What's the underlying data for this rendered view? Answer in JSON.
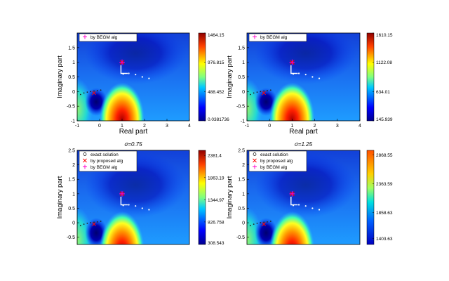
{
  "chart_data": [
    {
      "type": "heatmap",
      "title": "",
      "xlabel": "Real part",
      "ylabel": "Imaginary part",
      "xlim": [
        -1,
        4
      ],
      "ylim": [
        -1,
        2
      ],
      "xticks": [
        "-1",
        "0",
        "1",
        "2",
        "3",
        "4"
      ],
      "yticks": [
        "-1",
        "-0.5",
        "0",
        "0.5",
        "1",
        "1.5"
      ],
      "legend": [
        "by BEGM alg"
      ],
      "colorbar_ticks": [
        "1464.15",
        "976.815",
        "488.452",
        "0.0381736"
      ],
      "colorbar_range": [
        0,
        1464.15
      ],
      "grid": false
    },
    {
      "type": "heatmap",
      "title": "",
      "xlabel": "Real part",
      "ylabel": "Imaginary part",
      "xlim": [
        -1,
        4
      ],
      "ylim": [
        -1,
        2
      ],
      "xticks": [
        "-1",
        "0",
        "1",
        "2",
        "3",
        "4"
      ],
      "yticks": [
        "-1",
        "-0.5",
        "0",
        "0.5",
        "1",
        "1.5"
      ],
      "legend": [
        "by BEGM alg"
      ],
      "colorbar_ticks": [
        "1610.15",
        "1122.08",
        "634.01",
        "145.939"
      ],
      "colorbar_range": [
        145.939,
        1610.15
      ],
      "grid": false
    },
    {
      "type": "heatmap",
      "title": "σ=0.75",
      "xlabel": "",
      "ylabel": "Imaginary part",
      "xlim": [
        -1,
        4
      ],
      "ylim": [
        -0.75,
        2.5
      ],
      "yticks": [
        "-0.5",
        "0",
        "0.5",
        "1",
        "1.5",
        "2",
        "2.5"
      ],
      "legend": [
        "exact solution",
        "by proposed alg",
        "by BEGM alg"
      ],
      "colorbar_ticks": [
        "2381.4",
        "1863.19",
        "1344.97",
        "826.758",
        "308.543"
      ],
      "colorbar_range": [
        300,
        2500
      ],
      "grid": false
    },
    {
      "type": "heatmap",
      "title": "σ=1.25",
      "xlabel": "",
      "ylabel": "Imaginary part",
      "xlim": [
        -1,
        4
      ],
      "ylim": [
        -0.75,
        2.5
      ],
      "yticks": [
        "-0.5",
        "0",
        "0.5",
        "1",
        "1.5",
        "2",
        "2.5"
      ],
      "legend": [
        "exact solution",
        "by proposed alg",
        "by BEGM alg"
      ],
      "colorbar_ticks": [
        "2868.55",
        "2363.59",
        "1858.63",
        "1403.63"
      ],
      "colorbar_range": [
        1300,
        2950
      ],
      "grid": false
    }
  ],
  "colors": {
    "field_low": "#1a1aa6",
    "field_mid": "#1e90ff",
    "field_high": "#ff2a00",
    "begm_marker": "#ff00cc",
    "proposed_marker": "#ff0000",
    "exact_marker": "#000000"
  }
}
